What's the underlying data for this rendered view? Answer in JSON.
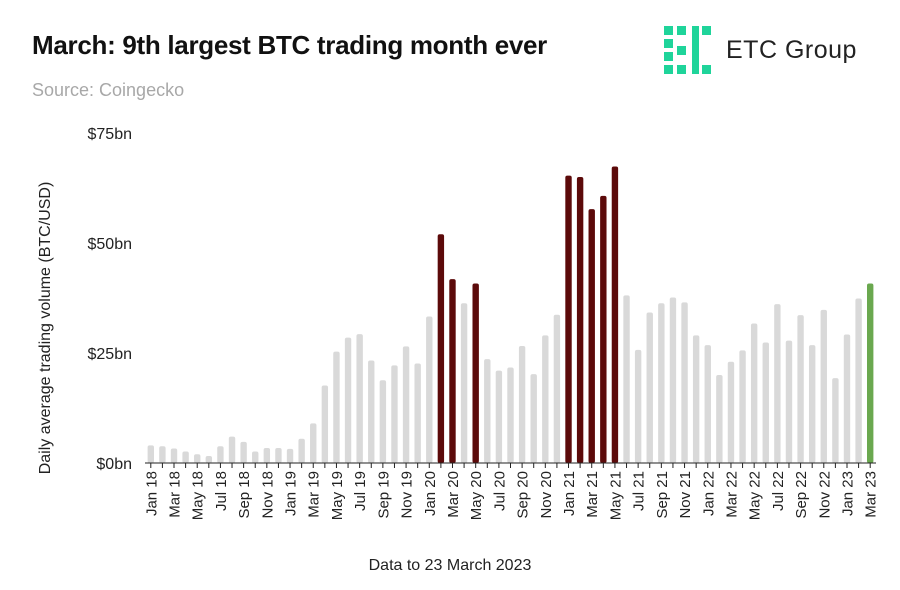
{
  "header": {
    "title": "March: 9th largest BTC trading month ever",
    "subtitle": "Source: Coingecko"
  },
  "logo": {
    "text": "ETC Group",
    "icon": "etc-group-logo-icon",
    "color": "#1fd49a"
  },
  "footer": {
    "note": "Data to 23 March 2023"
  },
  "colors": {
    "regular": "#d9d9d9",
    "top_month": "#5c0a0a",
    "latest": "#6aa84f"
  },
  "chart_data": {
    "type": "bar",
    "ylabel": "Daily average trading volume (BTC/USD)",
    "ylim": [
      0,
      75
    ],
    "yticks": [
      {
        "value": 0,
        "label": "$0bn"
      },
      {
        "value": 25,
        "label": "$25bn"
      },
      {
        "value": 50,
        "label": "$50bn"
      },
      {
        "value": 75,
        "label": "$75bn"
      }
    ],
    "categories": [
      "Jan 18",
      "Feb 18",
      "Mar 18",
      "Apr 18",
      "May 18",
      "Jun 18",
      "Jul 18",
      "Aug 18",
      "Sep 18",
      "Oct 18",
      "Nov 18",
      "Dec 18",
      "Jan 19",
      "Feb 19",
      "Mar 19",
      "Apr 19",
      "May 19",
      "Jun 19",
      "Jul 19",
      "Aug 19",
      "Sep 19",
      "Oct 19",
      "Nov 19",
      "Dec 19",
      "Jan 20",
      "Feb 20",
      "Mar 20",
      "Apr 20",
      "May 20",
      "Jun 20",
      "Jul 20",
      "Aug 20",
      "Sep 20",
      "Oct 20",
      "Nov 20",
      "Dec 20",
      "Jan 21",
      "Feb 21",
      "Mar 21",
      "Apr 21",
      "May 21",
      "Jun 21",
      "Jul 21",
      "Aug 21",
      "Sep 21",
      "Oct 21",
      "Nov 21",
      "Dec 21",
      "Jan 22",
      "Feb 22",
      "Mar 22",
      "Apr 22",
      "May 22",
      "Jun 22",
      "Jul 22",
      "Aug 22",
      "Sep 22",
      "Oct 22",
      "Nov 22",
      "Dec 22",
      "Jan 23",
      "Feb 23",
      "Mar 23"
    ],
    "values": [
      4,
      3.8,
      3.3,
      2.6,
      2,
      1.6,
      3.8,
      6,
      4.8,
      2.6,
      3.4,
      3.4,
      3.2,
      5.5,
      9,
      17.6,
      25.3,
      28.5,
      29.3,
      23.3,
      18.8,
      22.2,
      26.5,
      22.6,
      33.3,
      52,
      41.8,
      36.3,
      40.8,
      23.6,
      21,
      21.7,
      26.6,
      20.2,
      29,
      33.7,
      65.3,
      65,
      57.7,
      60.7,
      67.4,
      38.1,
      25.7,
      34.2,
      36.3,
      37.6,
      36.5,
      29,
      26.8,
      20,
      23,
      25.6,
      31.7,
      27.4,
      36.1,
      27.8,
      33.6,
      26.8,
      34.8,
      19.3,
      29.2,
      37.4,
      40.8
    ],
    "highlight_top": [
      "Feb 20",
      "Mar 20",
      "May 20",
      "Jan 21",
      "Feb 21",
      "Mar 21",
      "Apr 21",
      "May 21"
    ],
    "highlight_latest": "Mar 23",
    "x_tick_labels": [
      "Jan 18",
      "Mar 18",
      "May 18",
      "Jul 18",
      "Sep 18",
      "Nov 18",
      "Jan 19",
      "Mar 19",
      "May 19",
      "Jul 19",
      "Sep 19",
      "Nov 19",
      "Jan 20",
      "Mar 20",
      "May 20",
      "Jul 20",
      "Sep 20",
      "Nov 20",
      "Jan 21",
      "Mar 21",
      "May 21",
      "Jul 21",
      "Sep 21",
      "Nov 21",
      "Jan 22",
      "Mar 22",
      "May 22",
      "Jul 22",
      "Sep 22",
      "Nov 22",
      "Jan 23",
      "Mar 23"
    ],
    "grid": false,
    "legend": "none"
  }
}
